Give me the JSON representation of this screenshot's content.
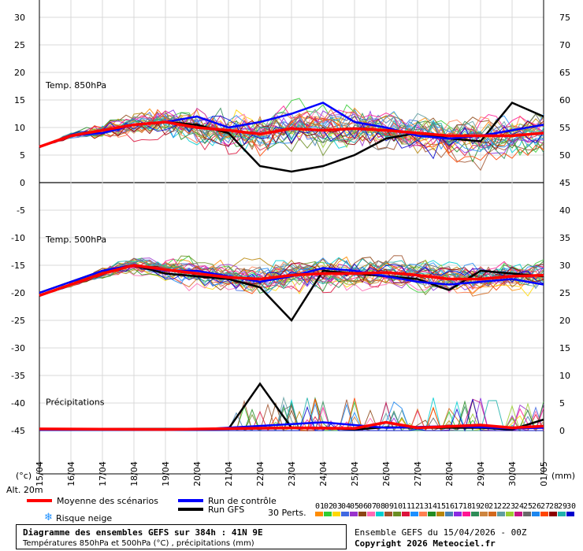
{
  "chart_data": {
    "type": "line",
    "dates": [
      "15/04",
      "16/04",
      "17/04",
      "18/04",
      "19/04",
      "20/04",
      "21/04",
      "22/04",
      "23/04",
      "24/04",
      "25/04",
      "26/04",
      "27/04",
      "28/04",
      "29/04",
      "30/04",
      "01/05"
    ],
    "left_axis": {
      "unit_label": "(°c)",
      "ticks": [
        30,
        25,
        20,
        15,
        10,
        5,
        0,
        -5,
        -10,
        -15,
        -20,
        -25,
        -30,
        -35,
        -40,
        -45
      ],
      "range": [
        -45,
        30
      ]
    },
    "right_axis": {
      "unit_label": "(mm)",
      "ticks": [
        75,
        70,
        65,
        60,
        55,
        50,
        45,
        40,
        35,
        30,
        25,
        20,
        15,
        10,
        5,
        0
      ],
      "range": [
        0,
        75
      ]
    },
    "panels": {
      "t850": {
        "label": "Temp. 850hPa"
      },
      "t500": {
        "label": "Temp. 500hPa"
      },
      "precip": {
        "label": "Précipitations"
      }
    },
    "series": [
      {
        "name": "Moyenne des scénarios",
        "color": "#ff0000",
        "t850": [
          [
            0,
            6.5
          ],
          [
            1,
            8.5
          ],
          [
            2,
            9.5
          ],
          [
            3,
            10.5
          ],
          [
            4,
            11
          ],
          [
            5,
            10
          ],
          [
            6,
            9.5
          ],
          [
            7,
            8.8
          ],
          [
            8,
            9.8
          ],
          [
            9,
            9.5
          ],
          [
            10,
            9.8
          ],
          [
            11,
            9.5
          ],
          [
            12,
            9
          ],
          [
            13,
            8.5
          ],
          [
            14,
            8.5
          ],
          [
            15,
            8.5
          ],
          [
            16,
            9
          ]
        ],
        "t500": [
          [
            0,
            -20.5
          ],
          [
            1,
            -18.5
          ],
          [
            2,
            -16.5
          ],
          [
            3,
            -15
          ],
          [
            4,
            -15.8
          ],
          [
            5,
            -16.5
          ],
          [
            6,
            -17.2
          ],
          [
            7,
            -17.5
          ],
          [
            8,
            -16.8
          ],
          [
            9,
            -16.5
          ],
          [
            10,
            -16.5
          ],
          [
            11,
            -16.3
          ],
          [
            12,
            -16.8
          ],
          [
            13,
            -17.5
          ],
          [
            14,
            -17.5
          ],
          [
            15,
            -17
          ],
          [
            16,
            -16.8
          ]
        ],
        "precip": [
          [
            0,
            0.3
          ],
          [
            4,
            0.2
          ],
          [
            8,
            0.5
          ],
          [
            10,
            0.4
          ],
          [
            11,
            1.5
          ],
          [
            12,
            0.5
          ],
          [
            14,
            1
          ],
          [
            15,
            0.5
          ],
          [
            16,
            0.8
          ]
        ]
      },
      {
        "name": "Run de contrôle",
        "color": "#0000ff",
        "t850": [
          [
            0,
            6.5
          ],
          [
            1,
            8.5
          ],
          [
            2,
            9
          ],
          [
            3,
            10.5
          ],
          [
            4,
            11
          ],
          [
            5,
            12
          ],
          [
            6,
            10
          ],
          [
            7,
            11
          ],
          [
            8,
            12.5
          ],
          [
            9,
            14.5
          ],
          [
            10,
            11
          ],
          [
            11,
            10
          ],
          [
            12,
            8.5
          ],
          [
            13,
            8
          ],
          [
            14,
            8.5
          ],
          [
            15,
            9.5
          ],
          [
            16,
            10.5
          ]
        ],
        "t500": [
          [
            0,
            -20
          ],
          [
            1,
            -18
          ],
          [
            2,
            -16
          ],
          [
            3,
            -15
          ],
          [
            4,
            -16
          ],
          [
            5,
            -16
          ],
          [
            6,
            -17
          ],
          [
            7,
            -18
          ],
          [
            8,
            -17
          ],
          [
            9,
            -15.5
          ],
          [
            10,
            -16
          ],
          [
            11,
            -17
          ],
          [
            12,
            -18
          ],
          [
            13,
            -18.5
          ],
          [
            14,
            -18
          ],
          [
            15,
            -17.5
          ],
          [
            16,
            -18.5
          ]
        ],
        "precip": [
          [
            0,
            0.2
          ],
          [
            5,
            0.2
          ],
          [
            9,
            1.5
          ],
          [
            11,
            0.5
          ],
          [
            13,
            0.8
          ],
          [
            15,
            0.4
          ],
          [
            16,
            0.5
          ]
        ]
      },
      {
        "name": "Run GFS",
        "color": "#000000",
        "t850": [
          [
            0,
            6.5
          ],
          [
            1,
            8.5
          ],
          [
            2,
            9.5
          ],
          [
            3,
            10.5
          ],
          [
            4,
            11
          ],
          [
            5,
            10.5
          ],
          [
            6,
            9
          ],
          [
            7,
            3
          ],
          [
            8,
            2
          ],
          [
            9,
            3
          ],
          [
            10,
            5
          ],
          [
            11,
            8
          ],
          [
            12,
            9
          ],
          [
            13,
            8
          ],
          [
            14,
            7.5
          ],
          [
            15,
            14.5
          ],
          [
            16,
            12
          ]
        ],
        "t500": [
          [
            0,
            -20
          ],
          [
            1,
            -18
          ],
          [
            2,
            -16
          ],
          [
            3,
            -15
          ],
          [
            4,
            -16.5
          ],
          [
            5,
            -17
          ],
          [
            6,
            -17.5
          ],
          [
            7,
            -19
          ],
          [
            8,
            -25
          ],
          [
            9,
            -16
          ],
          [
            10,
            -16.5
          ],
          [
            11,
            -17
          ],
          [
            12,
            -17.5
          ],
          [
            13,
            -19.5
          ],
          [
            14,
            -16
          ],
          [
            15,
            -16.5
          ],
          [
            16,
            -17
          ]
        ],
        "precip": [
          [
            0,
            0.3
          ],
          [
            6,
            0.3
          ],
          [
            7,
            8.5
          ],
          [
            8,
            0.5
          ],
          [
            9,
            0.5
          ],
          [
            10,
            0.2
          ],
          [
            11,
            0.6
          ],
          [
            12,
            0.5
          ],
          [
            14,
            0.5
          ],
          [
            15,
            0.2
          ],
          [
            16,
            2
          ]
        ]
      }
    ],
    "perturbations_label": "30 Perts.",
    "perturbations": {
      "ids": [
        "01",
        "02",
        "03",
        "04",
        "05",
        "06",
        "07",
        "08",
        "09",
        "10",
        "11",
        "12",
        "13",
        "14",
        "15",
        "16",
        "17",
        "18",
        "19",
        "20",
        "21",
        "22",
        "23",
        "24",
        "25",
        "26",
        "27",
        "28",
        "29",
        "30"
      ],
      "colors": [
        "#ff8c00",
        "#32cd32",
        "#ffd700",
        "#4169e1",
        "#9932cc",
        "#8b4513",
        "#ff69b4",
        "#00ced1",
        "#a0522d",
        "#6b8e23",
        "#dc143c",
        "#1e90ff",
        "#ff7f50",
        "#228b22",
        "#b8860b",
        "#4682b4",
        "#8a2be2",
        "#ff1493",
        "#2e8b57",
        "#cd853f",
        "#d2691e",
        "#5f9ea0",
        "#9acd32",
        "#c71585",
        "#696969",
        "#1c86ee",
        "#ff4500",
        "#8b0000",
        "#20b2aa",
        "#0000cd"
      ]
    }
  },
  "legend": {
    "mean_label": "Moyenne des scénarios",
    "control_label": "Run de contrôle",
    "gfs_label": "Run GFS",
    "snow_label": "Risque neige",
    "alt_label": "Alt. 20m"
  },
  "footer": {
    "title": "Diagramme des ensembles GEFS sur 384h : 41N 9E",
    "subtitle": "Températures 850hPa et 500hPa (°C) , précipitations (mm)",
    "ensemble_line": "Ensemble GEFS du 15/04/2026 - 00Z",
    "copyright": "Copyright 2026 Meteociel.fr"
  }
}
